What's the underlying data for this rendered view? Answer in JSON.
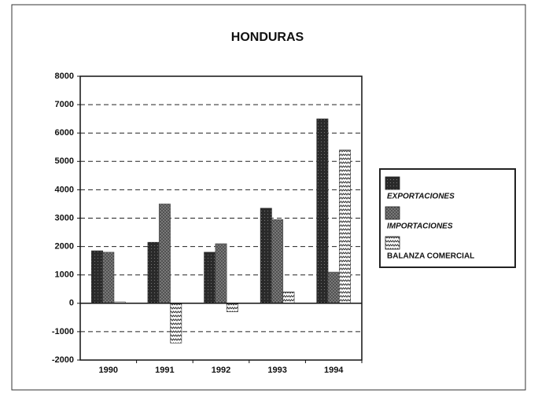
{
  "chart_data": {
    "type": "bar",
    "title": "HONDURAS",
    "categories": [
      "1990",
      "1991",
      "1992",
      "1993",
      "1994"
    ],
    "series": [
      {
        "name": "EXPORTACIONES",
        "color": "#2a2a2a",
        "values": [
          1850,
          2150,
          1800,
          3350,
          6500
        ]
      },
      {
        "name": "IMPORTACIONES",
        "color": "#4a4a4a",
        "values": [
          1800,
          3500,
          2100,
          2950,
          1100
        ]
      },
      {
        "name": "BALANZA COMERCIAL",
        "color": "#ffffff",
        "values": [
          50,
          -1400,
          -300,
          400,
          5400
        ]
      }
    ],
    "ylim": [
      -2000,
      8000
    ],
    "yticks": [
      -2000,
      -1000,
      0,
      1000,
      2000,
      3000,
      4000,
      5000,
      6000,
      7000,
      8000
    ],
    "grid": true,
    "legend": "right"
  }
}
